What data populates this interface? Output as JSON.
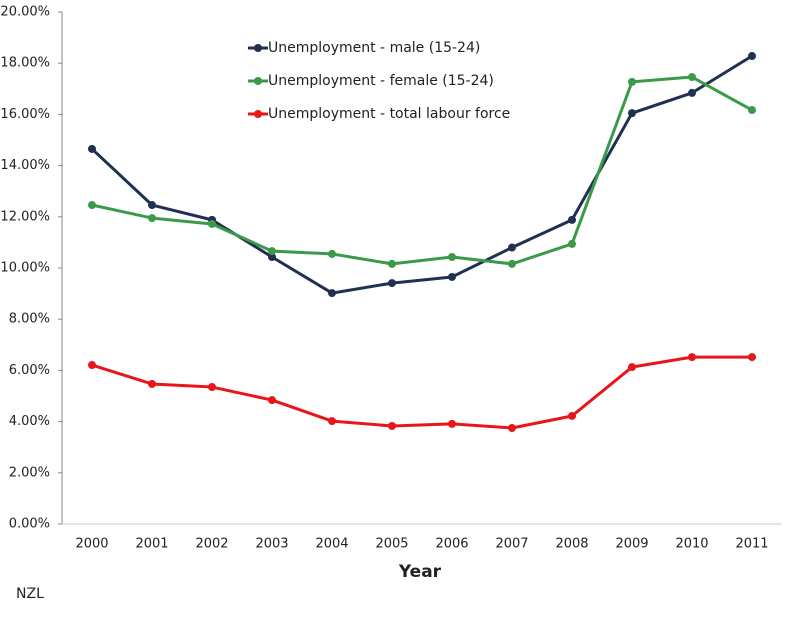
{
  "chart_data": {
    "type": "line",
    "x_label": "Year",
    "annotation": "NZL",
    "categories": [
      "2000",
      "2001",
      "2002",
      "2003",
      "2004",
      "2005",
      "2006",
      "2007",
      "2008",
      "2009",
      "2010",
      "2011"
    ],
    "series": [
      {
        "name": "Unemployment - male (15-24)",
        "color": "#1f3050",
        "values": [
          14.65,
          12.46,
          11.88,
          10.43,
          9.02,
          9.41,
          9.65,
          10.8,
          11.88,
          16.05,
          16.84,
          18.28
        ]
      },
      {
        "name": "Unemployment - female (15-24)",
        "color": "#3a9a4a",
        "values": [
          12.46,
          11.95,
          11.72,
          10.66,
          10.55,
          10.16,
          10.43,
          10.16,
          10.94,
          17.27,
          17.46,
          16.17
        ]
      },
      {
        "name": "Unemployment - total labour force",
        "color": "#e8161b",
        "values": [
          6.21,
          5.47,
          5.35,
          4.84,
          4.02,
          3.83,
          3.91,
          3.75,
          4.22,
          6.13,
          6.52,
          6.52
        ]
      }
    ],
    "ylim": [
      0,
      20
    ],
    "yticks": [
      {
        "value": 0,
        "label": "0.00%"
      },
      {
        "value": 2,
        "label": "2.00%"
      },
      {
        "value": 4,
        "label": "4.00%"
      },
      {
        "value": 6,
        "label": "6.00%"
      },
      {
        "value": 8,
        "label": "8.00%"
      },
      {
        "value": 10,
        "label": "10.00%"
      },
      {
        "value": 12,
        "label": "12.00%"
      },
      {
        "value": 14,
        "label": "14.00%"
      },
      {
        "value": 16,
        "label": "16.00%"
      },
      {
        "value": 18,
        "label": "18.00%"
      },
      {
        "value": 20,
        "label": "20.00%"
      }
    ],
    "grid": false,
    "legend": "top-left"
  }
}
